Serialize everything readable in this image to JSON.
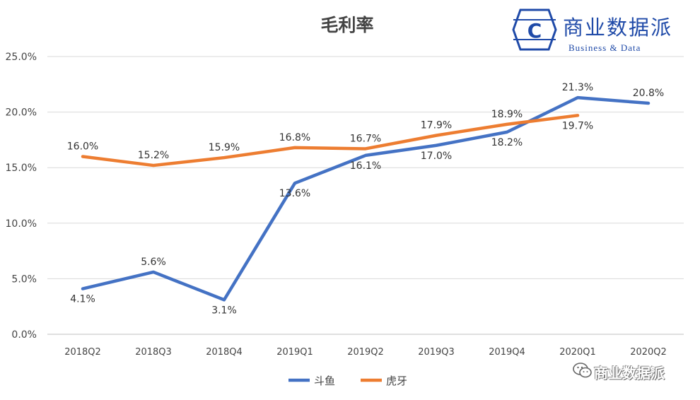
{
  "chart_data": {
    "type": "line",
    "title": "毛利率",
    "categories": [
      "2018Q2",
      "2018Q3",
      "2018Q4",
      "2019Q1",
      "2019Q2",
      "2019Q3",
      "2019Q4",
      "2020Q1",
      "2020Q2"
    ],
    "y_ticks": [
      "0.0%",
      "5.0%",
      "10.0%",
      "15.0%",
      "20.0%",
      "25.0%"
    ],
    "ylim": [
      0,
      25
    ],
    "grid": true,
    "legend_position": "bottom",
    "series": [
      {
        "name": "斗鱼",
        "color": "#4472C4",
        "values": [
          4.1,
          5.6,
          3.1,
          13.6,
          16.1,
          17.0,
          18.2,
          21.3,
          20.8
        ],
        "labels": [
          "4.1%",
          "5.6%",
          "3.1%",
          "13.6%",
          "16.1%",
          "17.0%",
          "18.2%",
          "21.3%",
          "20.8%"
        ]
      },
      {
        "name": "虎牙",
        "color": "#ED7D31",
        "values": [
          16.0,
          15.2,
          15.9,
          16.8,
          16.7,
          17.9,
          18.9,
          19.7,
          null
        ],
        "labels": [
          "16.0%",
          "15.2%",
          "15.9%",
          "16.8%",
          "16.7%",
          "17.9%",
          "18.9%",
          "19.7%",
          ""
        ]
      }
    ]
  },
  "logo": {
    "name_cn": "商业数据派",
    "name_en": "Business & Data",
    "mark_letter": "C",
    "color": "#1f4aa8"
  },
  "watermark": {
    "text": "商业数据派",
    "icon": "wechat-icon"
  }
}
